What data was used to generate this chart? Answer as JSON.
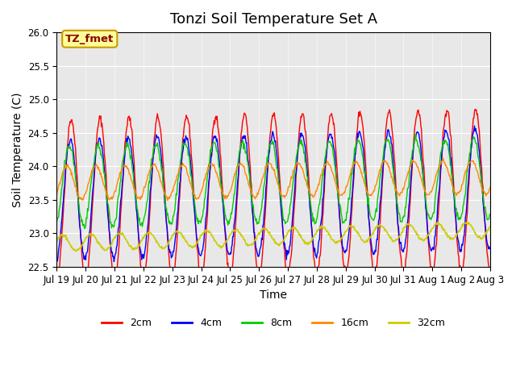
{
  "title": "Tonzi Soil Temperature Set A",
  "xlabel": "Time",
  "ylabel": "Soil Temperature (C)",
  "ylim": [
    22.5,
    26.0
  ],
  "xlim_days": 15,
  "x_tick_labels": [
    "Jul 19",
    "Jul 20",
    "Jul 21",
    "Jul 22",
    "Jul 23",
    "Jul 24",
    "Jul 25",
    "Jul 26",
    "Jul 27",
    "Jul 28",
    "Jul 29",
    "Jul 30",
    "Jul 31",
    "Aug 1",
    "Aug 2",
    "Aug 3"
  ],
  "annotation_text": "TZ_fmet",
  "annotation_bg": "#ffff99",
  "annotation_border": "#cc9900",
  "series_colors": {
    "2cm": "#ff0000",
    "4cm": "#0000ff",
    "8cm": "#00cc00",
    "16cm": "#ff8800",
    "32cm": "#cccc00"
  },
  "legend_labels": [
    "2cm",
    "4cm",
    "8cm",
    "16cm",
    "32cm"
  ],
  "background_color": "#ffffff",
  "plot_bg_color": "#e8e8e8",
  "grid_color": "#ffffff",
  "base_temp_2cm": 23.5,
  "amp_2cm": 1.2,
  "base_temp_4cm": 23.5,
  "amp_4cm": 0.9,
  "base_temp_8cm": 23.7,
  "amp_8cm": 0.6,
  "base_temp_16cm": 23.75,
  "amp_16cm": 0.25,
  "base_temp_32cm": 22.85,
  "amp_32cm": 0.12,
  "title_fontsize": 13,
  "axis_fontsize": 10,
  "tick_fontsize": 8.5
}
